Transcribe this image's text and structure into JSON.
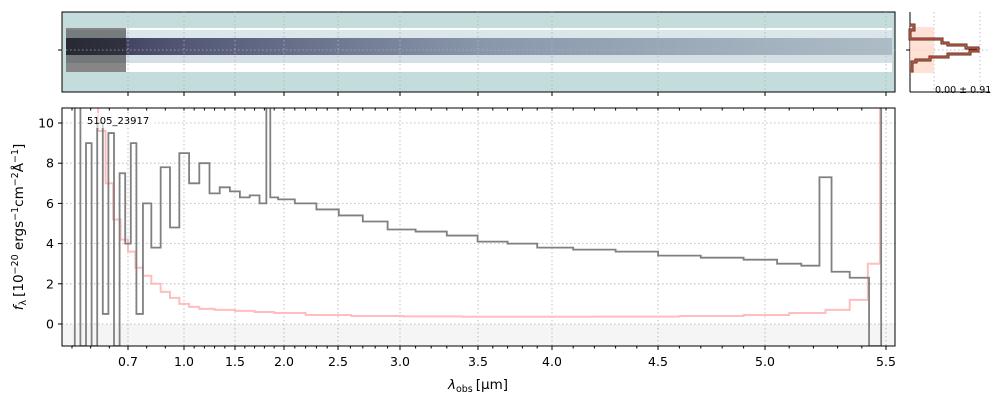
{
  "chart_data": {
    "type": "line",
    "object_label": "5105_23917",
    "xlabel": "λobs [μm]",
    "xlabel_main": "λ",
    "xlabel_sub": "obs",
    "xlabel_unit": "[μm]",
    "ylabel": "fλ [10^-20 ergs^-1 cm^-2 Å^-1]",
    "ylabel_parts": {
      "f": "f",
      "lambda_sub": "λ",
      "open": "[10",
      "exp1": "−20",
      "ergs": " ergs",
      "exp2": "−1",
      "cm": "cm",
      "exp3": "−2",
      "A": "Å",
      "exp4": "−1",
      "close": "]"
    },
    "xticks": [
      0.7,
      1.0,
      1.5,
      2.0,
      2.5,
      3.0,
      3.5,
      4.0,
      4.5,
      5.0,
      5.5
    ],
    "xtick_labels": [
      "0.7",
      "1.0",
      "1.5",
      "2.0",
      "2.5",
      "3.0",
      "3.5",
      "4.0",
      "4.5",
      "5.0",
      "5.5"
    ],
    "yticks": [
      0,
      2,
      4,
      6,
      8,
      10
    ],
    "ytick_labels": [
      "0",
      "2",
      "4",
      "6",
      "8",
      "10"
    ],
    "ylim": [
      -1.1,
      10.8
    ],
    "xlim": [
      0.35,
      5.55
    ],
    "grid": true,
    "series": [
      {
        "name": "flux",
        "color": "#808080",
        "x": [
          0.4,
          0.43,
          0.46,
          0.49,
          0.52,
          0.55,
          0.58,
          0.61,
          0.64,
          0.67,
          0.7,
          0.73,
          0.76,
          0.8,
          0.85,
          0.9,
          0.95,
          1.0,
          1.1,
          1.2,
          1.3,
          1.4,
          1.5,
          1.6,
          1.7,
          1.8,
          1.84,
          1.88,
          2.0,
          2.2,
          2.4,
          2.6,
          2.8,
          3.0,
          3.2,
          3.4,
          3.6,
          3.8,
          4.0,
          4.2,
          4.4,
          4.6,
          4.8,
          5.0,
          5.1,
          5.2,
          5.25,
          5.3,
          5.4,
          5.46,
          5.5
        ],
        "y": [
          -1.1,
          10.8,
          -1.1,
          9.0,
          -1.1,
          10.0,
          0.5,
          9.5,
          -1.1,
          7.5,
          4.0,
          9.0,
          0.5,
          6.0,
          3.8,
          7.8,
          4.8,
          8.5,
          7.0,
          8.0,
          6.5,
          6.8,
          6.6,
          6.3,
          6.4,
          6.0,
          10.8,
          6.3,
          6.2,
          6.0,
          5.7,
          5.4,
          5.1,
          4.7,
          4.6,
          4.4,
          4.1,
          4.0,
          3.8,
          3.7,
          3.6,
          3.4,
          3.3,
          3.2,
          3.0,
          2.9,
          7.3,
          2.6,
          2.3,
          -1.1,
          10.8
        ]
      },
      {
        "name": "uncertainty",
        "color": "#ffb3b3",
        "x": [
          0.52,
          0.56,
          0.6,
          0.64,
          0.68,
          0.72,
          0.76,
          0.8,
          0.85,
          0.9,
          0.95,
          1.0,
          1.1,
          1.2,
          1.4,
          1.6,
          1.8,
          2.0,
          2.4,
          2.8,
          3.2,
          3.6,
          4.0,
          4.4,
          4.8,
          5.0,
          5.2,
          5.3,
          5.4,
          5.45,
          5.5
        ],
        "y": [
          10.8,
          9.6,
          7.0,
          5.2,
          4.2,
          3.6,
          2.8,
          2.4,
          2.0,
          1.6,
          1.3,
          1.0,
          0.85,
          0.75,
          0.7,
          0.65,
          0.6,
          0.55,
          0.45,
          0.4,
          0.38,
          0.36,
          0.36,
          0.37,
          0.4,
          0.45,
          0.55,
          0.7,
          1.2,
          3.0,
          10.8
        ]
      }
    ],
    "profile_label": "0.00 ± 0.91"
  }
}
